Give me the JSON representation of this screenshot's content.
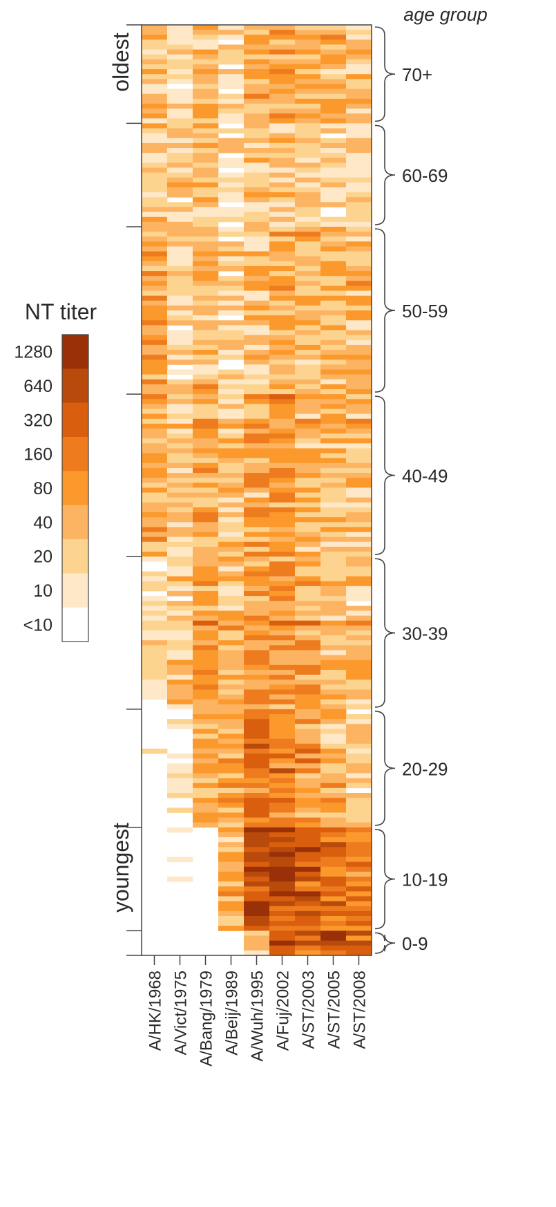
{
  "chart_data": {
    "type": "heatmap",
    "column_labels": [
      "A/HK/1968",
      "A/Vict/1975",
      "A/Bang/1979",
      "A/Beij/1989",
      "A/Wuh/1995",
      "A/Fuj/2002",
      "A/ST/2003",
      "A/ST/2005",
      "A/ST/2008"
    ],
    "row_axis_top": "oldest",
    "row_axis_bottom": "youngest",
    "age_group_title": "age group",
    "age_groups": [
      {
        "label": "70+",
        "rows": 20
      },
      {
        "label": "60-69",
        "rows": 21
      },
      {
        "label": "50-59",
        "rows": 34
      },
      {
        "label": "40-49",
        "rows": 33
      },
      {
        "label": "30-39",
        "rows": 31
      },
      {
        "label": "20-29",
        "rows": 24
      },
      {
        "label": "10-19",
        "rows": 21
      },
      {
        "label": "0-9",
        "rows": 5
      }
    ],
    "legend": {
      "title": "NT titer",
      "levels": [
        "<10",
        "10",
        "20",
        "40",
        "80",
        "160",
        "320",
        "640",
        "1280"
      ],
      "colors": [
        "#ffffff",
        "#fee8c8",
        "#fdd48f",
        "#fdb462",
        "#fb992c",
        "#ee7c1f",
        "#d95f0e",
        "#b84a0b",
        "#993008"
      ]
    },
    "column_profiles": {
      "70+": [
        2.2,
        1.6,
        2.8,
        1.6,
        3.2,
        3.6,
        3.0,
        2.8,
        2.2
      ],
      "60-69": [
        2.4,
        1.8,
        2.2,
        1.2,
        2.0,
        2.4,
        1.6,
        1.6,
        1.8
      ],
      "50-59": [
        3.4,
        2.0,
        2.6,
        1.6,
        2.4,
        3.2,
        2.8,
        2.8,
        2.6
      ],
      "40-49": [
        3.6,
        2.4,
        3.4,
        2.4,
        3.4,
        3.8,
        3.0,
        2.8,
        2.6
      ],
      "30-39": [
        1.0,
        2.6,
        3.8,
        2.8,
        4.2,
        3.8,
        3.6,
        3.0,
        2.6
      ],
      "20-29": [
        0.4,
        0.6,
        3.4,
        3.6,
        5.6,
        4.6,
        3.8,
        3.0,
        2.0
      ],
      "10-19": [
        0.1,
        0.1,
        0.3,
        3.2,
        6.6,
        6.8,
        6.2,
        5.6,
        4.8
      ],
      "0-9": [
        0.0,
        0.0,
        0.0,
        0.2,
        1.6,
        6.4,
        5.8,
        6.2,
        5.0
      ]
    }
  }
}
